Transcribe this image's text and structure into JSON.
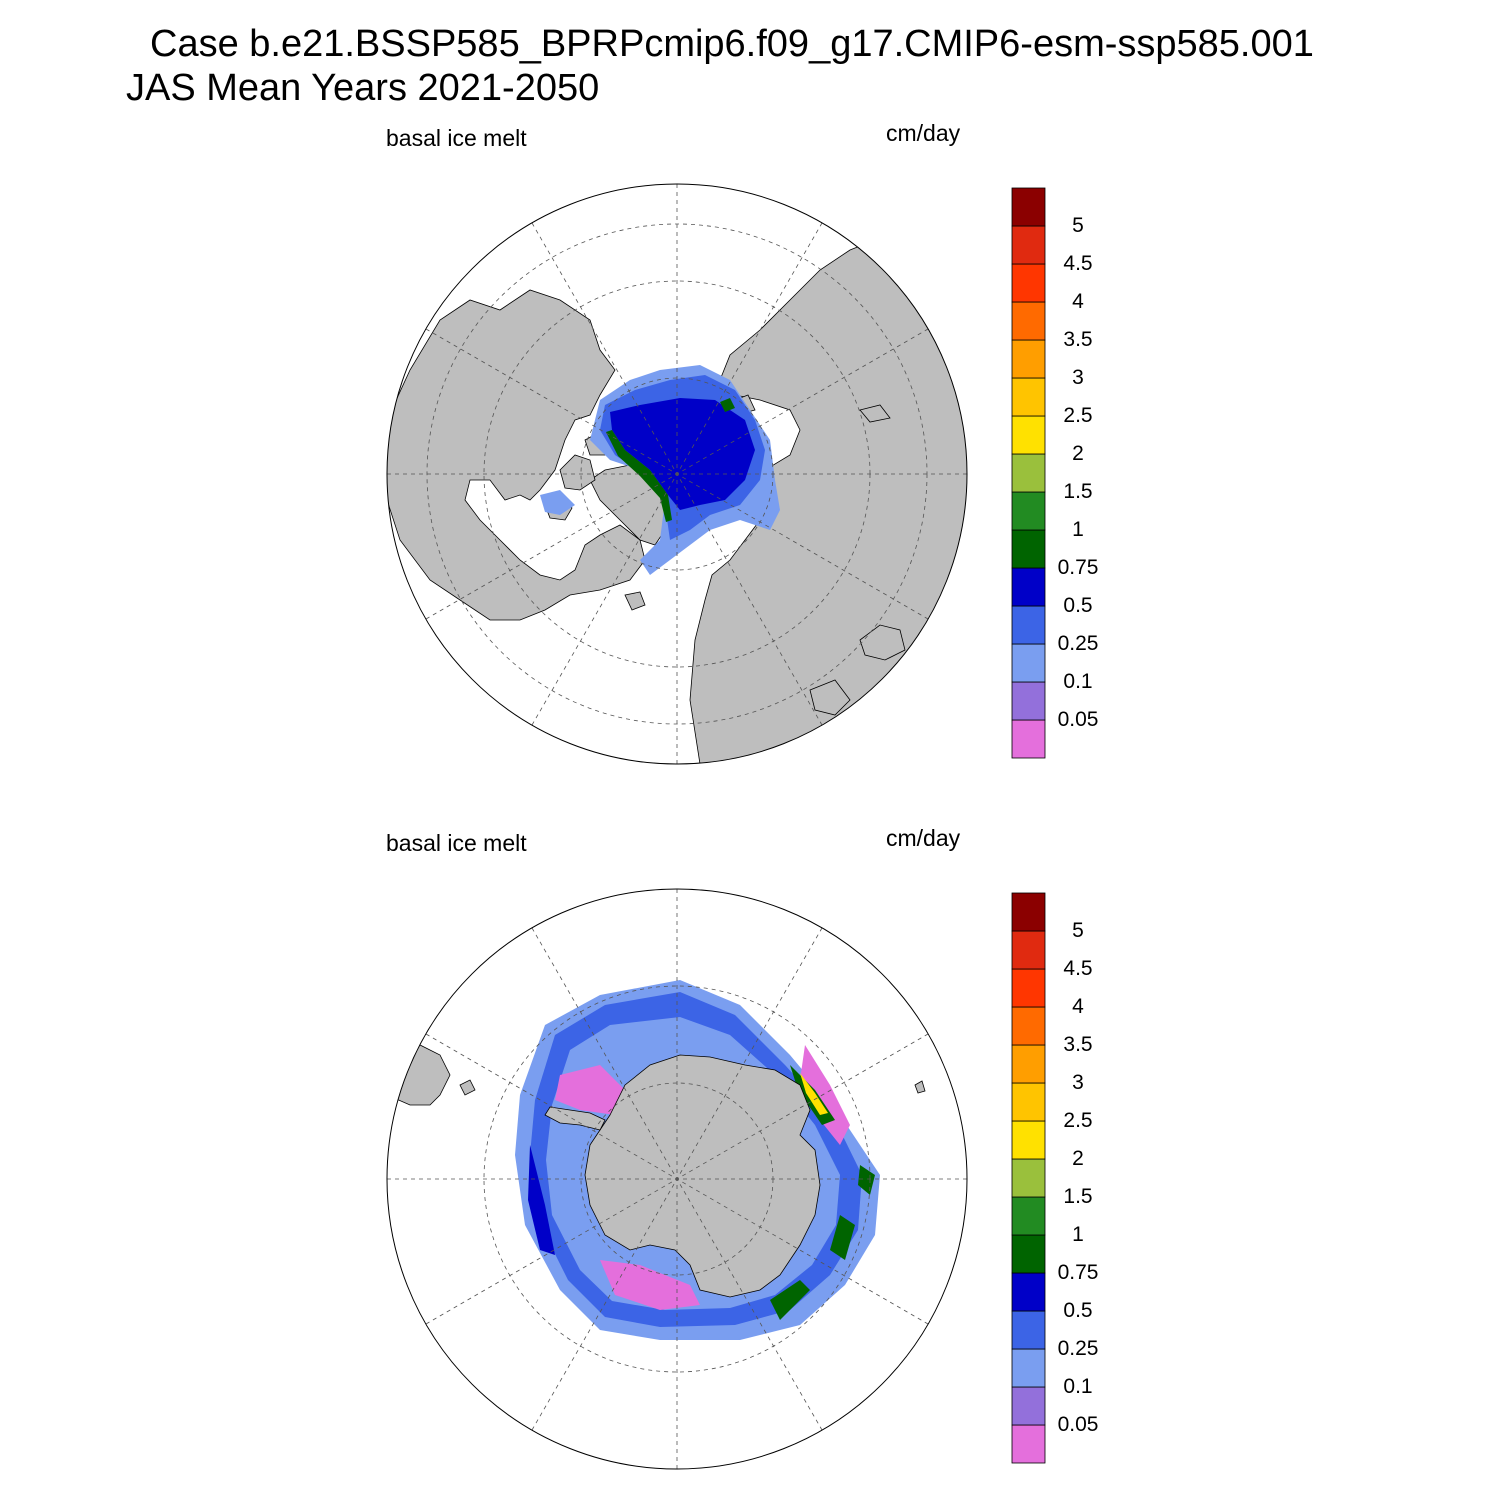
{
  "title": {
    "line1": "Case b.e21.BSSP585_BPRPcmip6.f09_g17.CMIP6-esm-ssp585.001",
    "line2": "JAS Mean   Years 2021-2050"
  },
  "panels": [
    {
      "id": "north",
      "variable_label": "basal ice melt",
      "units_label": "cm/day",
      "hemisphere": "north"
    },
    {
      "id": "south",
      "variable_label": "basal ice melt",
      "units_label": "cm/day",
      "hemisphere": "south"
    }
  ],
  "colorbar": {
    "levels": [
      "0.05",
      "0.1",
      "0.25",
      "0.5",
      "0.75",
      "1",
      "1.5",
      "2",
      "2.5",
      "3",
      "3.5",
      "4",
      "4.5",
      "5"
    ],
    "colors": [
      "#e46fdc",
      "#9370db",
      "#7a9ef0",
      "#3c64e6",
      "#0000c8",
      "#006400",
      "#228b22",
      "#9ac03c",
      "#ffe100",
      "#ffc400",
      "#ff9e00",
      "#ff6a00",
      "#ff3600",
      "#e02a10",
      "#8b0000"
    ]
  },
  "map_colors": {
    "land": "#bebebe",
    "ocean": "#ffffff",
    "grid": "#555555"
  }
}
